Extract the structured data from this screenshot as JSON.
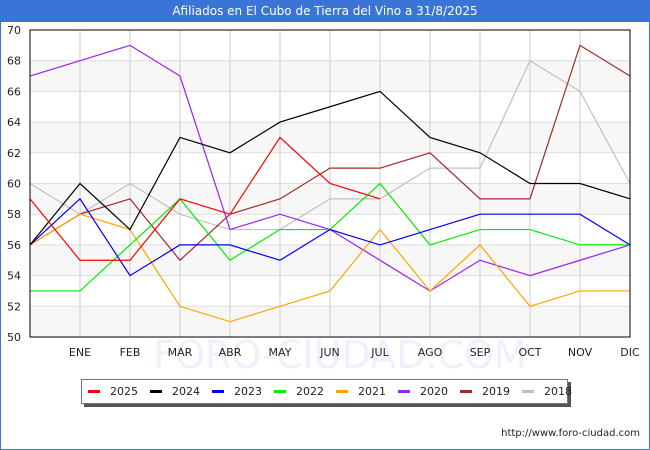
{
  "header": {
    "title": "Afiliados en El Cubo de Tierra del Vino a 31/8/2025"
  },
  "footer": {
    "credit": "http://www.foro-ciudad.com",
    "watermark": "FORO-CIUDAD.COM"
  },
  "chart_data": {
    "type": "line",
    "title": "Afiliados en El Cubo de Tierra del Vino a 31/8/2025",
    "xlabel": "",
    "ylabel": "",
    "ylim": [
      50,
      70
    ],
    "yticks": [
      50,
      52,
      54,
      56,
      58,
      60,
      62,
      64,
      66,
      68,
      70
    ],
    "categories": [
      "",
      "ENE",
      "FEB",
      "MAR",
      "ABR",
      "MAY",
      "JUN",
      "JUL",
      "AGO",
      "SEP",
      "OCT",
      "NOV",
      "DIC"
    ],
    "grid": true,
    "legend_position": "bottom",
    "series": [
      {
        "name": "2025",
        "color": "#ff0000",
        "values": [
          59,
          55,
          55,
          59,
          58,
          63,
          60,
          59
        ]
      },
      {
        "name": "2024",
        "color": "#000000",
        "values": [
          56,
          60,
          57,
          63,
          62,
          64,
          65,
          66,
          63,
          62,
          60,
          60,
          59
        ]
      },
      {
        "name": "2023",
        "color": "#0000ff",
        "values": [
          56,
          59,
          54,
          56,
          56,
          55,
          57,
          56,
          57,
          58,
          58,
          58,
          56
        ]
      },
      {
        "name": "2022",
        "color": "#00ee00",
        "values": [
          53,
          53,
          56,
          59,
          55,
          57,
          57,
          60,
          56,
          57,
          57,
          56,
          56
        ]
      },
      {
        "name": "2021",
        "color": "#ffa500",
        "values": [
          56,
          58,
          57,
          52,
          51,
          52,
          53,
          57,
          53,
          56,
          52,
          53,
          53
        ]
      },
      {
        "name": "2020",
        "color": "#a020f0",
        "values": [
          67,
          68,
          69,
          67,
          57,
          58,
          57,
          55,
          53,
          55,
          54,
          55,
          56
        ]
      },
      {
        "name": "2019",
        "color": "#a52a2a",
        "values": [
          56,
          58,
          59,
          55,
          58,
          59,
          61,
          61,
          62,
          59,
          59,
          69,
          67
        ]
      },
      {
        "name": "2018",
        "color": "#c0c0c0",
        "values": [
          60,
          58,
          60,
          58,
          57,
          57,
          59,
          59,
          61,
          61,
          68,
          66,
          60
        ]
      }
    ]
  }
}
